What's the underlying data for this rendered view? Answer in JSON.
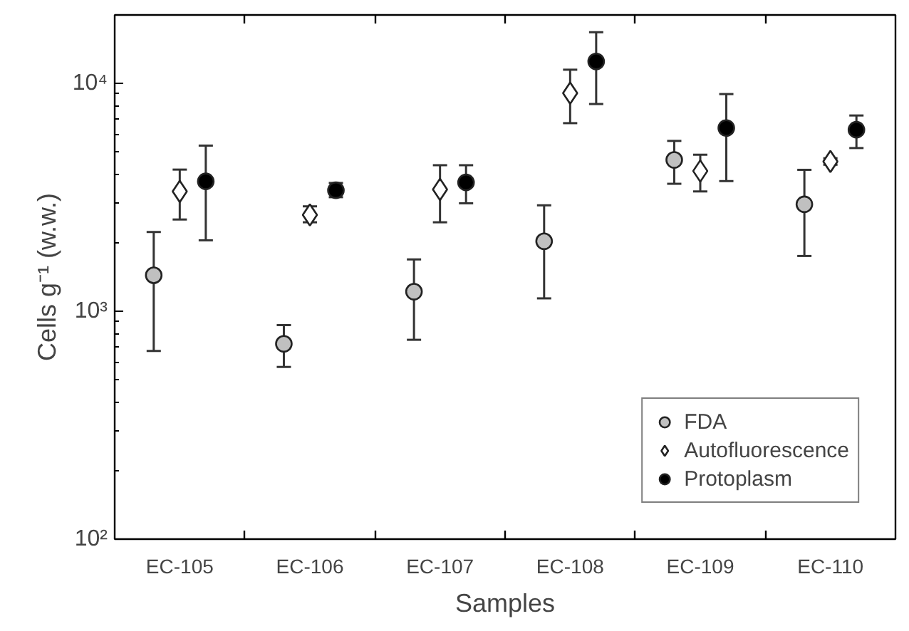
{
  "chart_data": {
    "type": "scatter",
    "xlabel": "Samples",
    "ylabel": "Cells g⁻¹ (w.w.)",
    "categories": [
      "EC-105",
      "EC-106",
      "EC-107",
      "EC-108",
      "EC-109",
      "EC-110"
    ],
    "log": "y",
    "ylim": [
      100,
      20000
    ],
    "yticks": [
      {
        "value": 100,
        "label": "10²"
      },
      {
        "value": 1000,
        "label": "10³"
      },
      {
        "value": 10000,
        "label": "10⁴"
      }
    ],
    "grid": false,
    "legend": "bottom right",
    "series": [
      {
        "name": "FDA",
        "color": "#c0c0c0",
        "marker": "circle",
        "values": [
          1440,
          720,
          1220,
          2030,
          4620,
          2950
        ],
        "errors": [
          [
            670,
            2230
          ],
          [
            570,
            870
          ],
          [
            750,
            1690
          ],
          [
            1140,
            2920
          ],
          [
            3630,
            5600
          ],
          [
            1750,
            4180
          ]
        ]
      },
      {
        "name": "Autofluorescence",
        "color": "#ffffff",
        "marker": "diamond",
        "values": [
          3360,
          2650,
          3430,
          9080,
          4130,
          4550
        ],
        "errors": [
          [
            2530,
            4190
          ],
          [
            2460,
            2890
          ],
          [
            2460,
            4380
          ],
          [
            6700,
            11500
          ],
          [
            3360,
            4870
          ],
          [
            4400,
            4700
          ]
        ]
      },
      {
        "name": "Protoplasm",
        "color": "#000000",
        "marker": "circle",
        "values": [
          3720,
          3400,
          3680,
          12500,
          6380,
          6270
        ],
        "errors": [
          [
            2050,
            5340
          ],
          [
            3170,
            3660
          ],
          [
            2980,
            4380
          ],
          [
            8130,
            16800
          ],
          [
            3730,
            8990
          ],
          [
            5210,
            7240
          ]
        ]
      }
    ]
  }
}
